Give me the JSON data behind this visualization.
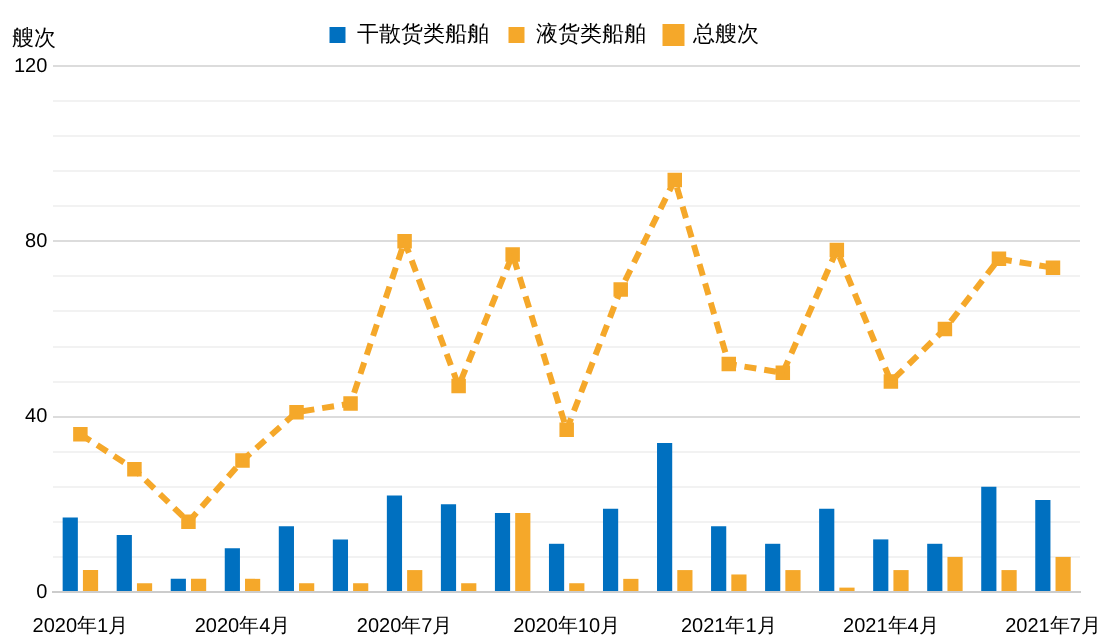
{
  "chart_data": {
    "type": "bar",
    "ylabel": "艘次",
    "categories": [
      "2020年1月",
      null,
      null,
      "2020年4月",
      null,
      null,
      "2020年7月",
      null,
      null,
      "2020年10月",
      null,
      null,
      "2021年1月",
      null,
      null,
      "2021年4月",
      null,
      null,
      "2021年7月"
    ],
    "series": [
      {
        "name": "干散货类船舶",
        "color": "#0070c0",
        "values": [
          17,
          13,
          3,
          10,
          15,
          12,
          22,
          20,
          18,
          11,
          19,
          34,
          15,
          11,
          19,
          12,
          11,
          24,
          21
        ]
      },
      {
        "name": "液货类船舶",
        "color": "#f5a82a",
        "values": [
          5,
          2,
          3,
          3,
          2,
          2,
          5,
          2,
          18,
          2,
          3,
          5,
          4,
          5,
          1,
          5,
          8,
          5,
          8
        ]
      },
      {
        "name": "总艘次",
        "type": "line",
        "color": "#f5a82a",
        "marker": "square",
        "line_style": "dashed",
        "values": [
          36,
          28,
          16,
          30,
          41,
          43,
          80,
          47,
          77,
          37,
          69,
          94,
          52,
          50,
          78,
          48,
          60,
          76,
          74
        ]
      }
    ],
    "ylim": [
      0,
      120
    ],
    "yticks": [
      0,
      {
        "value": 8,
        "label": null
      },
      {
        "value": 16,
        "label": null
      },
      {
        "value": 24,
        "label": null
      },
      {
        "value": 32,
        "label": null
      },
      40,
      {
        "value": 48,
        "label": null
      },
      {
        "value": 56,
        "label": null
      },
      {
        "value": 64,
        "label": null
      },
      {
        "value": 72,
        "label": null
      },
      80,
      {
        "value": 88,
        "label": null
      },
      {
        "value": 96,
        "label": null
      },
      {
        "value": 104,
        "label": null
      },
      {
        "value": 112,
        "label": null
      },
      120
    ],
    "grid": "y",
    "legend": "top"
  }
}
